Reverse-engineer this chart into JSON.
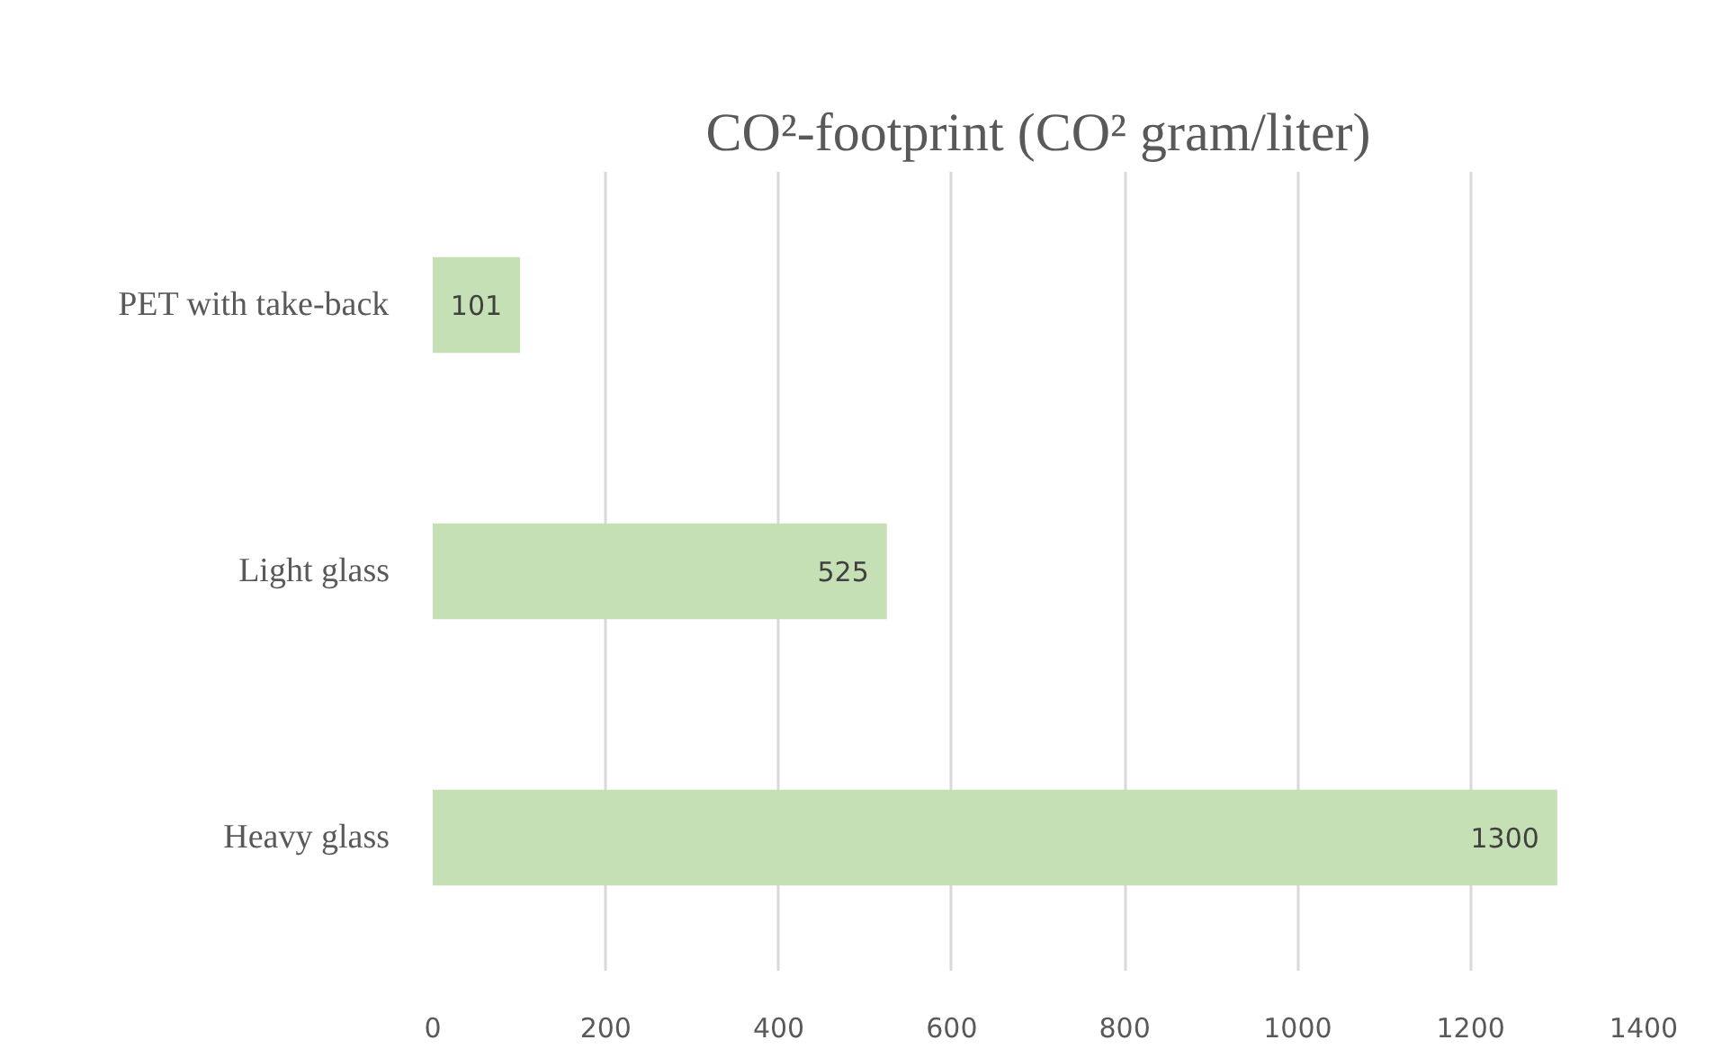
{
  "chart_data": {
    "type": "bar",
    "orientation": "horizontal",
    "title": "CO²-footprint (CO² gram/liter)",
    "categories": [
      "PET with take-back",
      "Light glass",
      "Heavy glass"
    ],
    "values": [
      101,
      525,
      1300
    ],
    "color": "#c5e0b4",
    "xlim": [
      0,
      1400
    ],
    "xticks": [
      0,
      200,
      400,
      600,
      800,
      1000,
      1200,
      1400
    ],
    "grid": "x",
    "data_labels": true
  }
}
